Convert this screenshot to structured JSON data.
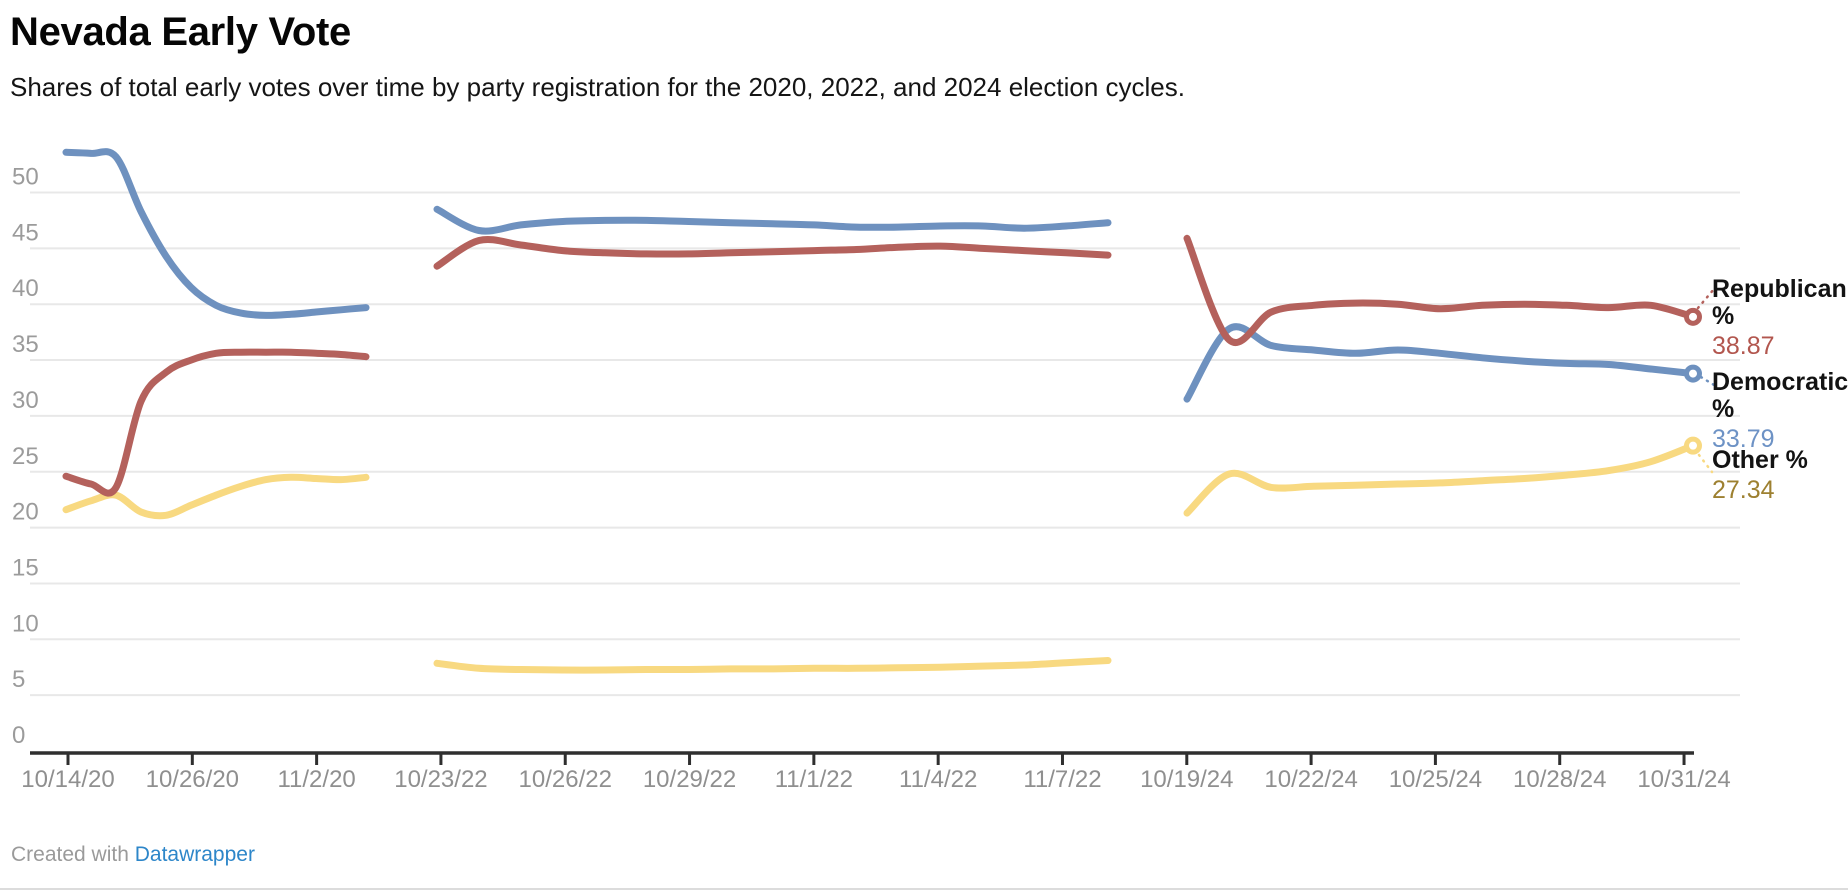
{
  "header": {
    "title": "Nevada Early Vote",
    "subtitle": "Shares of total early votes over time by party registration for the 2020, 2022, and 2024 election cycles."
  },
  "footer": {
    "created_with": "Created with ",
    "link_label": "Datawrapper"
  },
  "chart_data": {
    "type": "line",
    "title": "Nevada Early Vote",
    "subtitle": "Shares of total early votes over time by party registration for the 2020, 2022, and 2024 election cycles.",
    "legend_position": "right",
    "grid": true,
    "y_axis": {
      "ticks": [
        0,
        5,
        10,
        15,
        20,
        25,
        30,
        35,
        40,
        45,
        50
      ],
      "range": [
        0,
        55.5
      ]
    },
    "x_axis": {
      "tick_labels": [
        "10/14/20",
        "10/26/20",
        "11/2/20",
        "10/23/22",
        "10/26/22",
        "10/29/22",
        "11/1/22",
        "11/4/22",
        "11/7/22",
        "10/19/24",
        "10/22/24",
        "10/25/24",
        "10/28/24",
        "10/31/24"
      ]
    },
    "cycles": [
      "2020",
      "2022",
      "2024"
    ],
    "colors": {
      "grid": "#e8e8e8",
      "axis": "#2f2f2f",
      "y_tick_text": "#9b9b9b",
      "x_tick_text": "#8f8f8f"
    },
    "series": [
      {
        "name": "Republican %",
        "color": "#b4615c",
        "value_color": "#b2564e",
        "end_label": "38.87",
        "data": {
          "2020": [
            24.6,
            23.9,
            23.6,
            31.3,
            33.9,
            35.0,
            35.6,
            35.7,
            35.7,
            35.7,
            35.6,
            35.5,
            35.3
          ],
          "2022": [
            43.4,
            45.7,
            45.3,
            44.8,
            44.6,
            44.5,
            44.5,
            44.6,
            44.7,
            44.8,
            44.9,
            45.1,
            45.2,
            45.0,
            44.8,
            44.6,
            44.4
          ],
          "2024": [
            45.9,
            36.8,
            39.3,
            39.9,
            40.1,
            40.0,
            39.6,
            39.9,
            40.0,
            39.9,
            39.7,
            39.9,
            38.87
          ]
        }
      },
      {
        "name": "Democratic %",
        "color": "#6e91bf",
        "value_color": "#6d92c5",
        "end_label": "33.79",
        "data": {
          "2020": [
            53.6,
            53.5,
            53.2,
            48.3,
            44.3,
            41.5,
            39.9,
            39.2,
            39.0,
            39.1,
            39.3,
            39.5,
            39.7
          ],
          "2022": [
            48.5,
            46.6,
            47.1,
            47.4,
            47.5,
            47.5,
            47.4,
            47.3,
            47.2,
            47.1,
            46.9,
            46.9,
            47.0,
            47.0,
            46.8,
            47.0,
            47.3
          ],
          "2024": [
            31.5,
            37.8,
            36.3,
            35.9,
            35.6,
            35.9,
            35.6,
            35.2,
            34.9,
            34.7,
            34.6,
            34.2,
            33.79
          ]
        }
      },
      {
        "name": "Other %",
        "color": "#f8d981",
        "value_color": "#9d8030",
        "end_label": "27.34",
        "data": {
          "2020": [
            21.6,
            22.4,
            22.9,
            21.4,
            21.1,
            22.0,
            22.9,
            23.7,
            24.3,
            24.5,
            24.4,
            24.3,
            24.5
          ],
          "2022": [
            7.85,
            7.4,
            7.3,
            7.25,
            7.25,
            7.3,
            7.3,
            7.35,
            7.35,
            7.4,
            7.4,
            7.45,
            7.5,
            7.6,
            7.7,
            7.9,
            8.1
          ],
          "2024": [
            21.3,
            24.8,
            23.6,
            23.7,
            23.8,
            23.9,
            24.0,
            24.2,
            24.4,
            24.7,
            25.1,
            25.9,
            27.34
          ]
        }
      }
    ]
  }
}
